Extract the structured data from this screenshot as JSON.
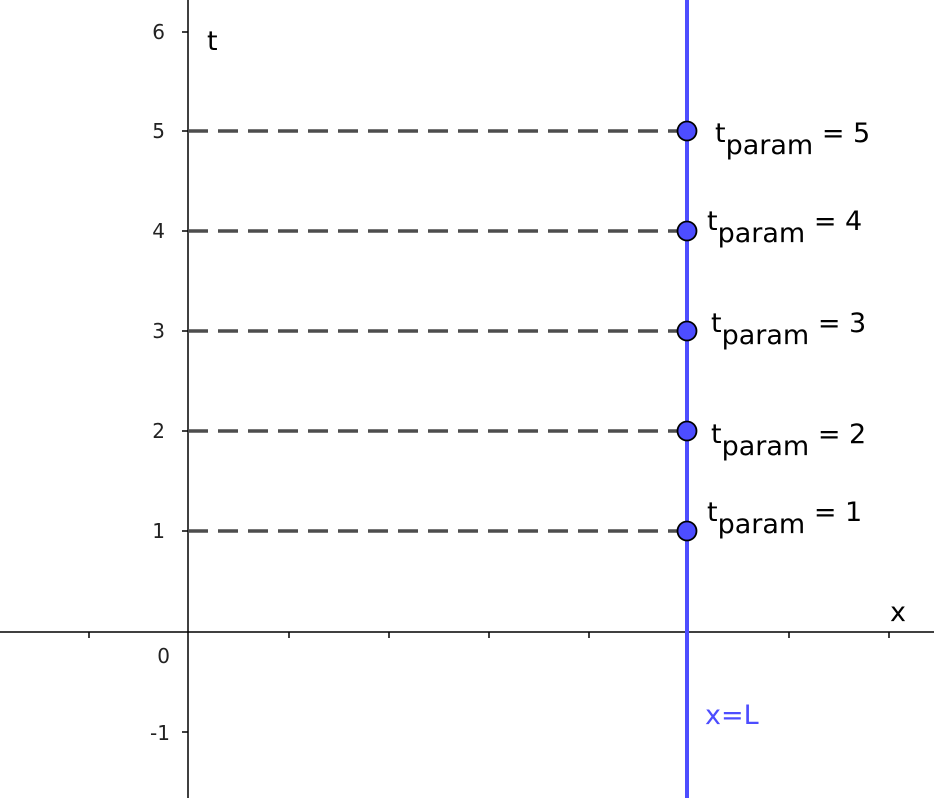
{
  "axes": {
    "x_label": "x",
    "y_label": "t",
    "y_tick_labels": [
      "6",
      "5",
      "4",
      "3",
      "2",
      "1",
      "0",
      "-1"
    ]
  },
  "boundary_line": {
    "label": "x=L",
    "color": "#4d4dff"
  },
  "points": [
    {
      "t": 5,
      "label_base": "t",
      "label_sub": "param",
      "label_rest": " = 5"
    },
    {
      "t": 4,
      "label_base": "t",
      "label_sub": "param",
      "label_rest": " = 4"
    },
    {
      "t": 3,
      "label_base": "t",
      "label_sub": "param",
      "label_rest": " = 3"
    },
    {
      "t": 2,
      "label_base": "t",
      "label_sub": "param",
      "label_rest": " = 2"
    },
    {
      "t": 1,
      "label_base": "t",
      "label_sub": "param",
      "label_rest": " = 1"
    }
  ],
  "colors": {
    "dash_line": "#4d4d4d",
    "point_fill": "#4d4dff",
    "axis": "#000000"
  }
}
